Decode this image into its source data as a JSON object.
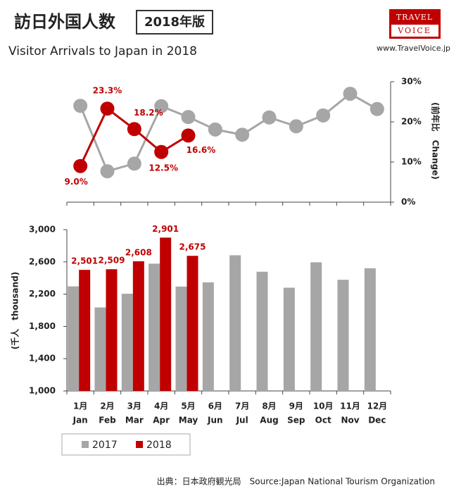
{
  "header": {
    "title": "訪日外国人数",
    "badge": "2018年版",
    "subtitle": "Visitor Arrivals to Japan in 2018",
    "logo_top": "TRAVEL",
    "logo_bottom": "VOICE",
    "url": "www.TravelVoice.jp",
    "source": "出典：日本政府観光局　Source:Japan National Tourism Organization"
  },
  "chart_data": [
    {
      "type": "line",
      "y_label": "(前年比　Change)",
      "categories": [
        [
          "1月",
          "Jan"
        ],
        [
          "2月",
          "Feb"
        ],
        [
          "3月",
          "Mar"
        ],
        [
          "4月",
          "Apr"
        ],
        [
          "5月",
          "May"
        ],
        [
          "6月",
          "Jun"
        ],
        [
          "7月",
          "Jul"
        ],
        [
          "8月",
          "Aug"
        ],
        [
          "9月",
          "Sep"
        ],
        [
          "10月",
          "Oct"
        ],
        [
          "11月",
          "Nov"
        ],
        [
          "12月",
          "Dec"
        ]
      ],
      "ylim": [
        0,
        30
      ],
      "yticks": [
        {
          "value": 0,
          "label": "0%"
        },
        {
          "value": 10,
          "label": "10%"
        },
        {
          "value": 20,
          "label": "20%"
        },
        {
          "value": 30,
          "label": "30%"
        }
      ],
      "series": [
        {
          "color": "#a6a6a6",
          "values": [
            24.0,
            7.7,
            9.6,
            23.9,
            21.2,
            18.1,
            16.8,
            21.1,
            18.9,
            21.6,
            27.0,
            23.2
          ]
        },
        {
          "color": "#c00000",
          "values": [
            9.0,
            23.3,
            18.2,
            12.5,
            16.6,
            null,
            null,
            null,
            null,
            null,
            null,
            null
          ],
          "value_labels": [
            "9.0%",
            "23.3%",
            "18.2%",
            "12.5%",
            "16.6%",
            null,
            null,
            null,
            null,
            null,
            null,
            null
          ]
        }
      ]
    },
    {
      "type": "bar",
      "y_label": "(千人　thousand)",
      "categories": [
        [
          "1月",
          "Jan"
        ],
        [
          "2月",
          "Feb"
        ],
        [
          "3月",
          "Mar"
        ],
        [
          "4月",
          "Apr"
        ],
        [
          "5月",
          "May"
        ],
        [
          "6月",
          "Jun"
        ],
        [
          "7月",
          "Jul"
        ],
        [
          "8月",
          "Aug"
        ],
        [
          "9月",
          "Sep"
        ],
        [
          "10月",
          "Oct"
        ],
        [
          "11月",
          "Nov"
        ],
        [
          "12月",
          "Dec"
        ]
      ],
      "ylim": [
        1000,
        3000
      ],
      "yticks": [
        {
          "value": 1000,
          "label": "1,000"
        },
        {
          "value": 1400,
          "label": "1,400"
        },
        {
          "value": 1800,
          "label": "1,800"
        },
        {
          "value": 2200,
          "label": "2,200"
        },
        {
          "value": 2600,
          "label": "2,600"
        },
        {
          "value": 3000,
          "label": "3,000"
        }
      ],
      "series": [
        {
          "name": "2017",
          "color": "#a6a6a6",
          "values": [
            2296,
            2035,
            2205,
            2578,
            2294,
            2346,
            2682,
            2478,
            2280,
            2595,
            2378,
            2521
          ]
        },
        {
          "name": "2018",
          "color": "#c00000",
          "values": [
            2501,
            2509,
            2608,
            2901,
            2675,
            null,
            null,
            null,
            null,
            null,
            null,
            null
          ],
          "value_labels": [
            "2,501",
            "2,509",
            "2,608",
            "2,901",
            "2,675",
            null,
            null,
            null,
            null,
            null,
            null,
            null
          ]
        }
      ]
    }
  ]
}
